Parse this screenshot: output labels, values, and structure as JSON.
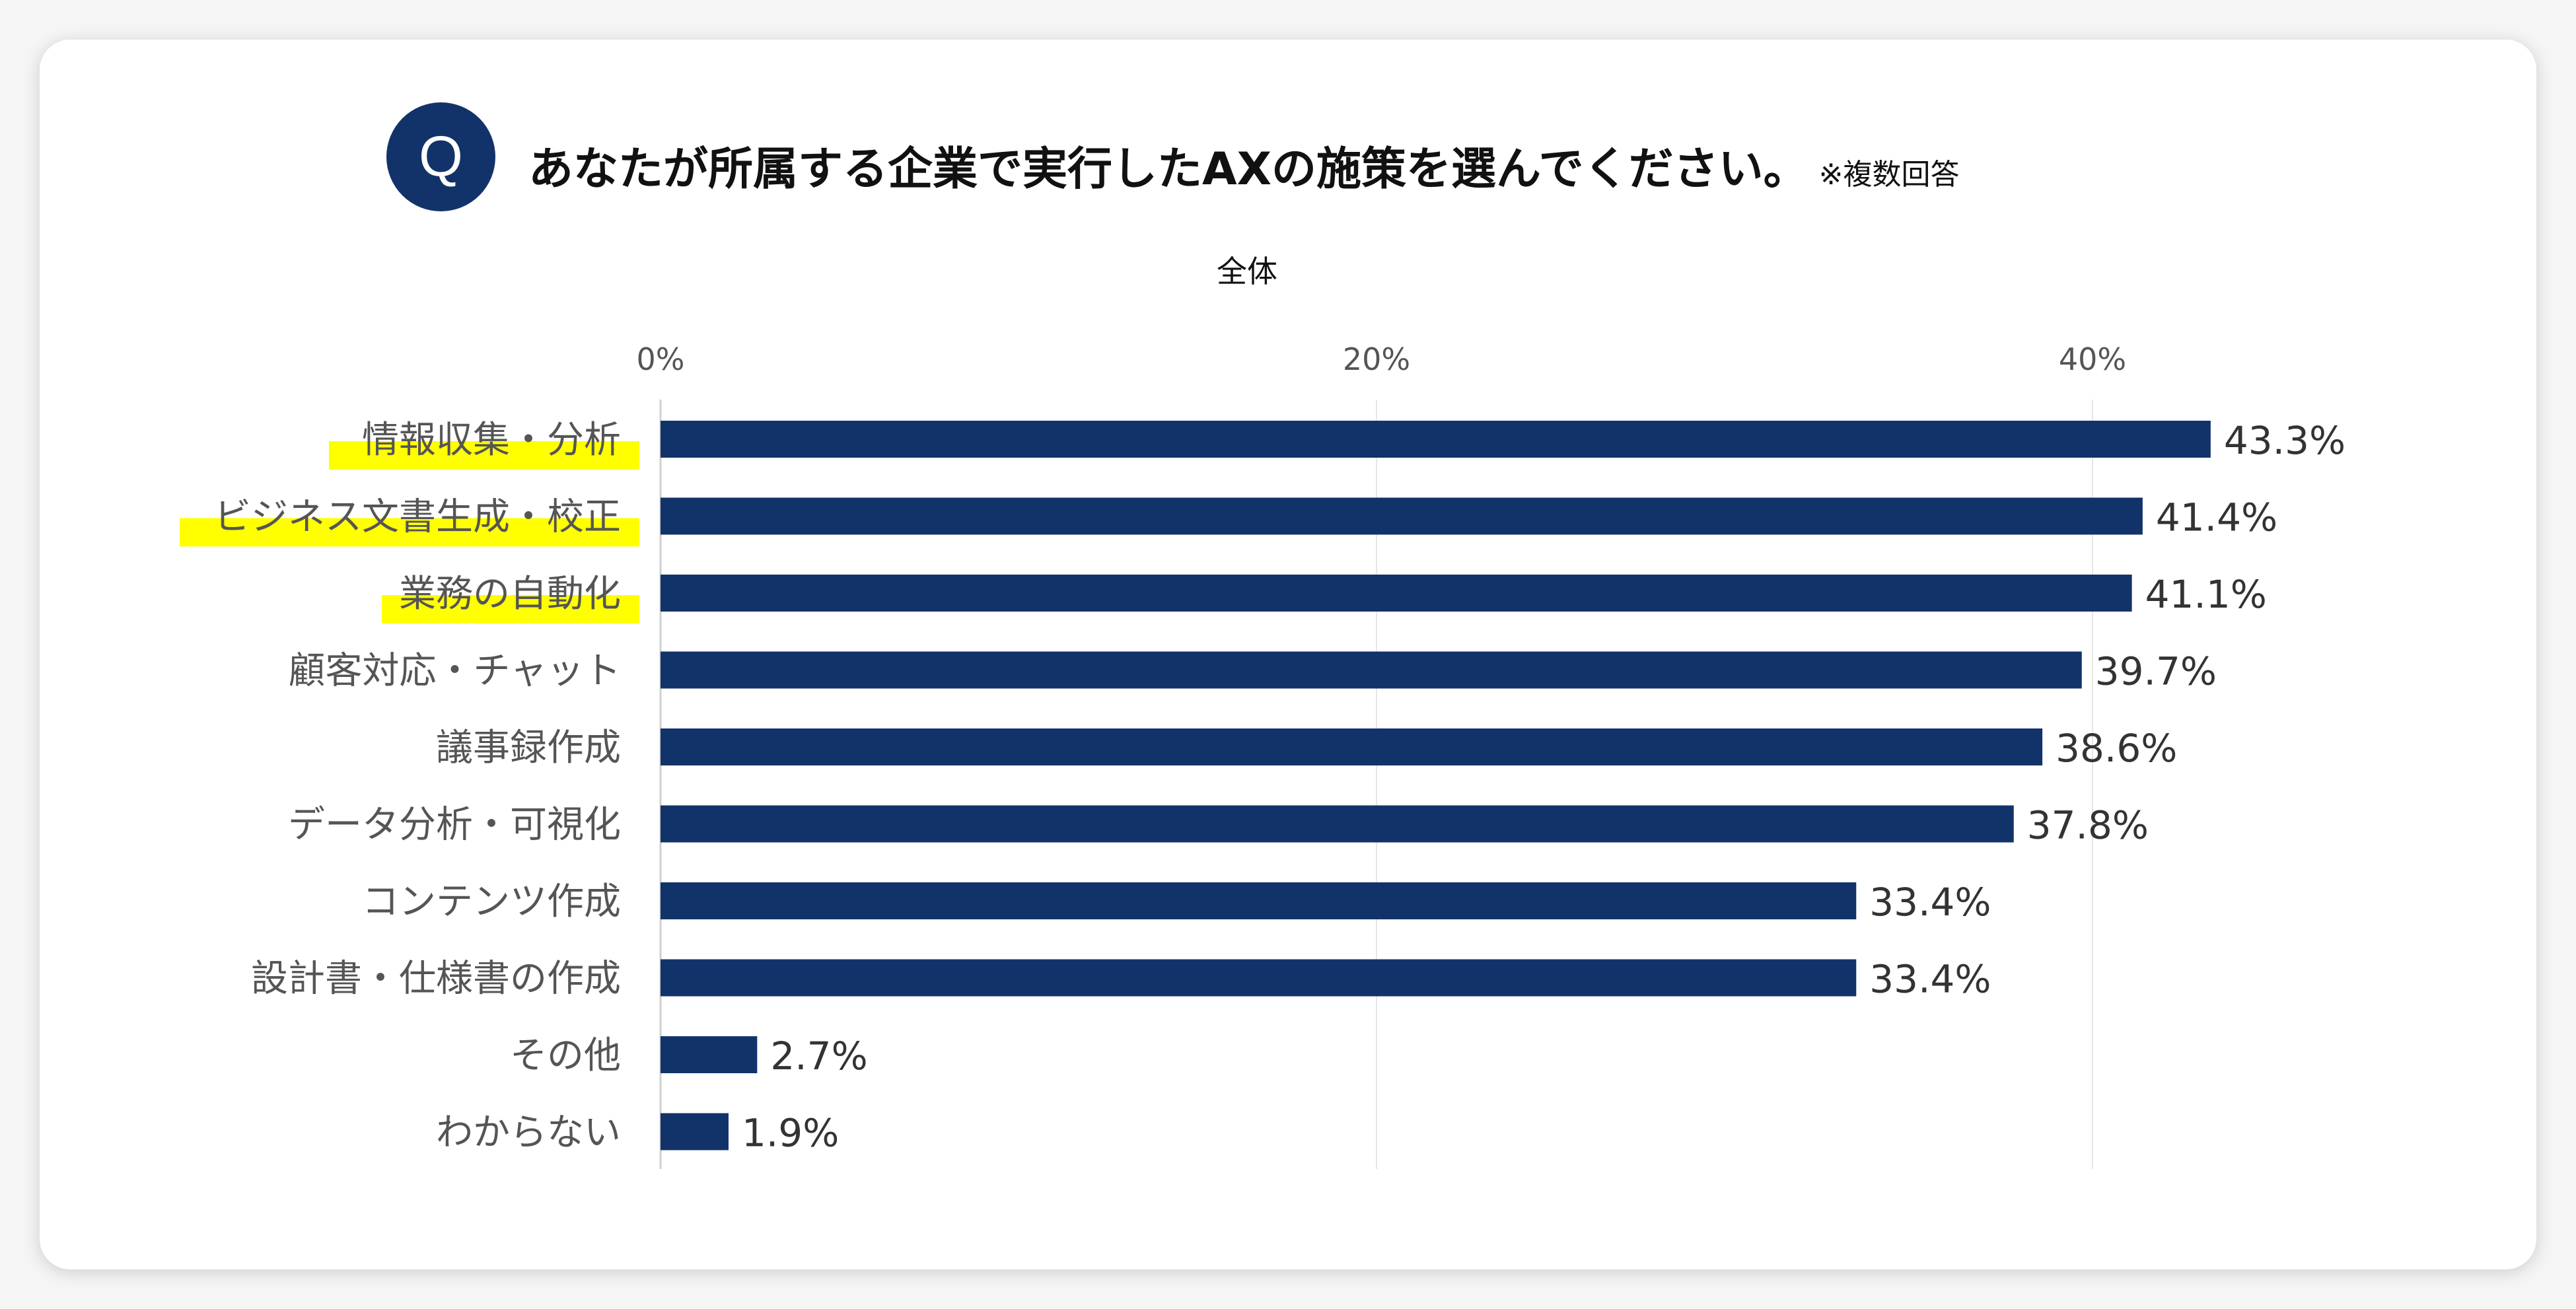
{
  "question": {
    "badge": "Q",
    "text": "あなたが所属する企業で実行したAXの施策を選んでください。",
    "note": "※複数回答"
  },
  "colors": {
    "bar": "#12336a",
    "highlight": "#ffff00",
    "badge": "#12336a"
  },
  "chart_data": {
    "type": "bar",
    "orientation": "horizontal",
    "title": "全体",
    "categories": [
      "情報収集・分析",
      "ビジネス文書生成・校正",
      "業務の自動化",
      "顧客対応・チャット",
      "議事録作成",
      "データ分析・可視化",
      "コンテンツ作成",
      "設計書・仕様書の作成",
      "その他",
      "わからない"
    ],
    "values": [
      43.3,
      41.4,
      41.1,
      39.7,
      38.6,
      37.8,
      33.4,
      33.4,
      2.7,
      1.9
    ],
    "value_labels": [
      "43.3%",
      "41.4%",
      "41.1%",
      "39.7%",
      "38.6%",
      "37.8%",
      "33.4%",
      "33.4%",
      "2.7%",
      "1.9%"
    ],
    "highlighted": [
      0,
      1,
      2
    ],
    "xlim": [
      0,
      50
    ],
    "xticks": [
      0,
      20,
      40
    ],
    "xtick_labels": [
      "0%",
      "20%",
      "40%"
    ],
    "xlabel": "",
    "ylabel": "",
    "grid": true,
    "legend": false
  }
}
